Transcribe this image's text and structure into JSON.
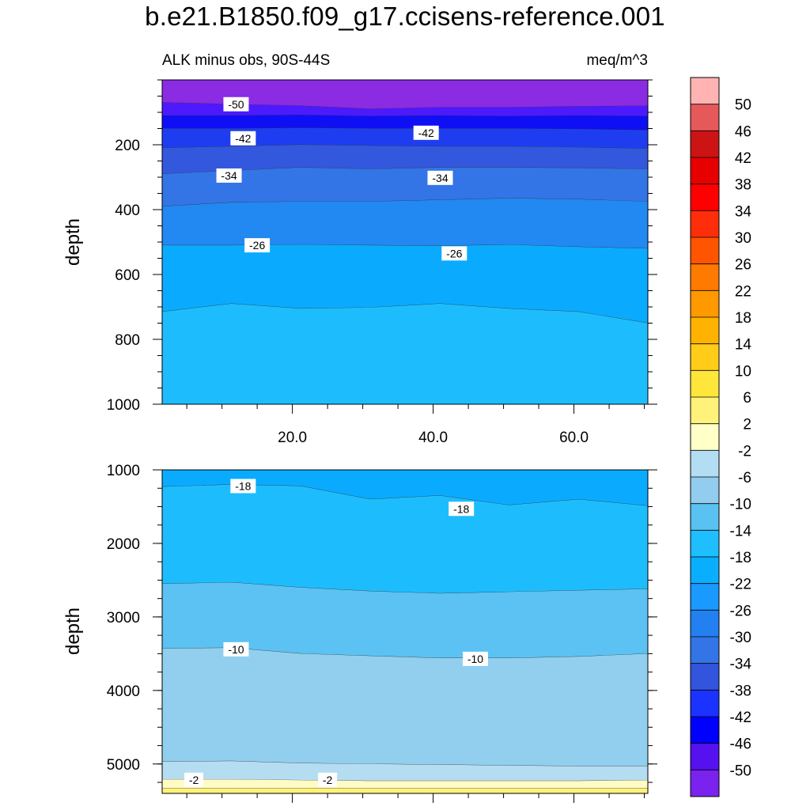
{
  "title": "b.e21.B1850.f09_g17.ccisens-reference.001",
  "chart_data": [
    {
      "type": "heatmap",
      "subtype": "filled-contour",
      "panel": "top",
      "subtitle_left": "ALK minus obs, 90S-44S",
      "subtitle_right": "meq/m^3",
      "ylabel": "depth",
      "xlabel": "",
      "ylim": [
        1000,
        0
      ],
      "xlim": [
        1.5,
        70.5
      ],
      "yticks": [
        200,
        400,
        600,
        800,
        1000
      ],
      "xticks": [
        20.0,
        40.0,
        60.0
      ],
      "xtick_labels": [
        "20.0",
        "40.0",
        "60.0"
      ],
      "bands": [
        {
          "from_depth": 0,
          "to_depth": [
            70,
            75,
            80,
            90,
            85,
            85,
            82,
            80
          ],
          "value": -50
        },
        {
          "from_depth": [
            70,
            75,
            80,
            90,
            85,
            85,
            82,
            80
          ],
          "to_depth": [
            110,
            110,
            108,
            112,
            110,
            112,
            110,
            112
          ],
          "value": -46
        },
        {
          "from_depth": [
            110,
            110,
            108,
            112,
            110,
            112,
            110,
            112
          ],
          "to_depth": [
            150,
            150,
            148,
            150,
            150,
            150,
            152,
            155
          ],
          "value": -42
        },
        {
          "from_depth": [
            150,
            150,
            148,
            150,
            150,
            150,
            152,
            155
          ],
          "to_depth": [
            210,
            205,
            200,
            203,
            205,
            205,
            208,
            212
          ],
          "value": -38
        },
        {
          "from_depth": [
            210,
            205,
            200,
            203,
            205,
            205,
            208,
            212
          ],
          "to_depth": [
            290,
            280,
            270,
            275,
            270,
            270,
            272,
            275
          ],
          "value": -34
        },
        {
          "from_depth": [
            290,
            280,
            270,
            275,
            270,
            270,
            272,
            275
          ],
          "to_depth": [
            390,
            378,
            375,
            375,
            370,
            365,
            368,
            375
          ],
          "value": -30
        },
        {
          "from_depth": [
            390,
            378,
            375,
            375,
            370,
            365,
            368,
            375
          ],
          "to_depth": [
            510,
            510,
            508,
            510,
            512,
            508,
            515,
            520
          ],
          "value": -26
        },
        {
          "from_depth": [
            510,
            510,
            508,
            510,
            512,
            508,
            515,
            520
          ],
          "to_depth": [
            715,
            690,
            705,
            702,
            690,
            705,
            715,
            750
          ],
          "value": -22
        },
        {
          "from_depth": [
            715,
            690,
            705,
            702,
            690,
            705,
            715,
            750
          ],
          "to_depth": 1000,
          "value": -18
        }
      ],
      "contour_labels": [
        {
          "text": "-50",
          "x": 12,
          "depth": 75
        },
        {
          "text": "-42",
          "x": 13,
          "depth": 180
        },
        {
          "text": "-42",
          "x": 39,
          "depth": 163
        },
        {
          "text": "-34",
          "x": 11,
          "depth": 295
        },
        {
          "text": "-34",
          "x": 41,
          "depth": 302
        },
        {
          "text": "-26",
          "x": 15,
          "depth": 510
        },
        {
          "text": "-26",
          "x": 43,
          "depth": 535
        }
      ]
    },
    {
      "type": "heatmap",
      "subtype": "filled-contour",
      "panel": "bottom",
      "ylabel": "depth",
      "xlabel": "",
      "ylim": [
        5400,
        1000
      ],
      "xlim": [
        1.5,
        70.5
      ],
      "yticks": [
        1000,
        2000,
        3000,
        4000,
        5000
      ],
      "bands": [
        {
          "from_depth": 1000,
          "to_depth": [
            1230,
            1200,
            1220,
            1400,
            1350,
            1480,
            1400,
            1490
          ],
          "value": -22
        },
        {
          "from_depth": [
            1230,
            1200,
            1220,
            1400,
            1350,
            1480,
            1400,
            1490
          ],
          "to_depth": [
            2550,
            2530,
            2600,
            2650,
            2680,
            2660,
            2640,
            2620
          ],
          "value": -18
        },
        {
          "from_depth": [
            2550,
            2530,
            2600,
            2650,
            2680,
            2660,
            2640,
            2620
          ],
          "to_depth": [
            3430,
            3420,
            3500,
            3530,
            3560,
            3560,
            3540,
            3500
          ],
          "value": -14
        },
        {
          "from_depth": [
            3430,
            3420,
            3500,
            3530,
            3560,
            3560,
            3540,
            3500
          ],
          "to_depth": [
            4970,
            4960,
            4990,
            5000,
            5010,
            5020,
            5030,
            5030
          ],
          "value": -10
        },
        {
          "from_depth": [
            4970,
            4960,
            4990,
            5000,
            5010,
            5020,
            5030,
            5030
          ],
          "to_depth": [
            5210,
            5210,
            5220,
            5230,
            5230,
            5230,
            5230,
            5220
          ],
          "value": -6
        },
        {
          "from_depth": [
            5210,
            5210,
            5220,
            5230,
            5230,
            5230,
            5230,
            5220
          ],
          "to_depth": [
            5330,
            5330,
            5330,
            5330,
            5330,
            5330,
            5330,
            5330
          ],
          "value": -2
        },
        {
          "from_depth": [
            5330,
            5330,
            5330,
            5330,
            5330,
            5330,
            5330,
            5330
          ],
          "to_depth": 5400,
          "value": 2
        }
      ],
      "contour_labels": [
        {
          "text": "-18",
          "x": 13,
          "depth": 1220
        },
        {
          "text": "-18",
          "x": 44,
          "depth": 1530
        },
        {
          "text": "-10",
          "x": 12,
          "depth": 3440
        },
        {
          "text": "-10",
          "x": 46,
          "depth": 3570
        },
        {
          "text": "-2",
          "x": 6,
          "depth": 5215
        },
        {
          "text": "-2",
          "x": 25,
          "depth": 5215
        }
      ]
    }
  ],
  "colorbar": {
    "labels": [
      "50",
      "46",
      "42",
      "38",
      "34",
      "30",
      "26",
      "22",
      "18",
      "14",
      "10",
      "6",
      "2",
      "-2",
      "-6",
      "-10",
      "-14",
      "-18",
      "-22",
      "-26",
      "-30",
      "-34",
      "-38",
      "-42",
      "-46",
      "-50"
    ],
    "colors": [
      "#ffb3b3",
      "#e6595a",
      "#cc1414",
      "#e60000",
      "#ff0000",
      "#ff2e0a",
      "#ff5500",
      "#ff7a00",
      "#ff9900",
      "#ffb300",
      "#ffcc1a",
      "#ffe63a",
      "#fff27a",
      "#ffffc8",
      "#b3ddf2",
      "#92ccee",
      "#5ac2f2",
      "#1ebeff",
      "#0aaeff",
      "#1a99ff",
      "#2280f0",
      "#3375e6",
      "#3355dd",
      "#1a33ff",
      "#0000ff",
      "#5511ee",
      "#7a22ee"
    ]
  },
  "level_colors": {
    "-50": "#8b2be2",
    "-46": "#4d1aff",
    "-42": "#0f0ff5",
    "-38": "#1f3df0",
    "-34": "#3358dd",
    "-30": "#3375e6",
    "-26": "#2288f2",
    "-22": "#0aabff",
    "-18": "#1dbdfd",
    "-14": "#5bc2f3",
    "-10": "#92cfee",
    "-6": "#b5ddf2",
    "-2": "#fffbc4",
    "2": "#fff27a"
  }
}
